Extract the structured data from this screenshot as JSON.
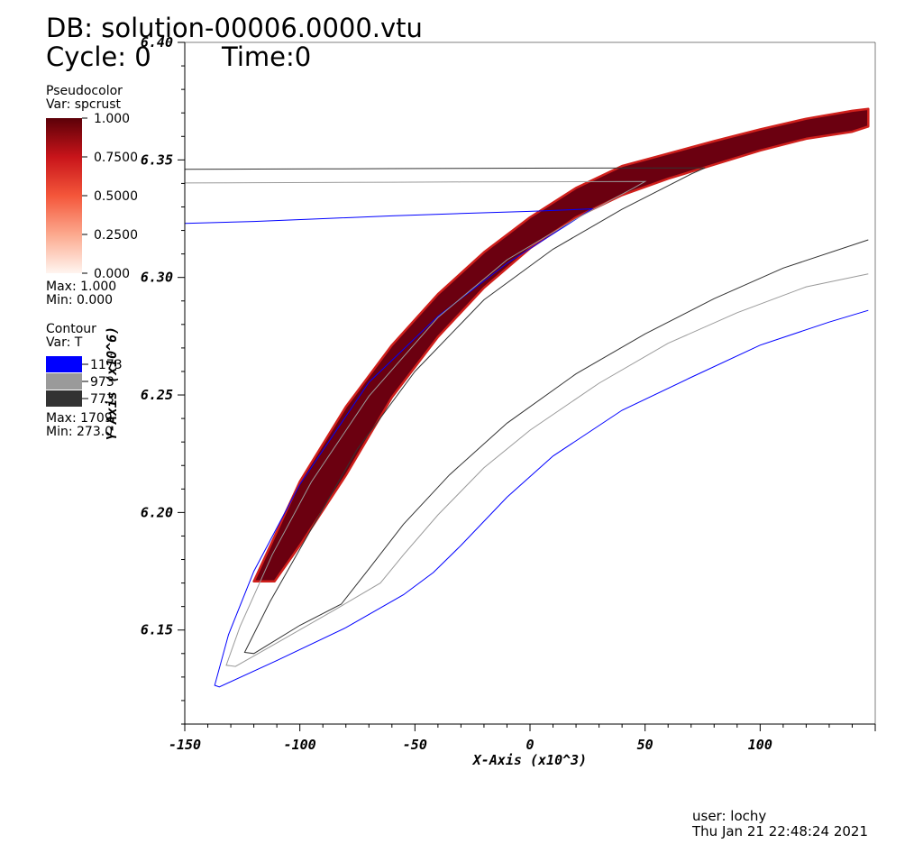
{
  "header": {
    "db": "DB: solution-00006.0000.vtu",
    "cycle": "Cycle: 0",
    "time": "Time:0"
  },
  "legend_pseudocolor": {
    "plot_type": "Pseudocolor",
    "var": "Var: spcrust",
    "ticks": [
      "1.000",
      "0.7500",
      "0.5000",
      "0.2500",
      "0.000"
    ],
    "max": "Max:  1.000",
    "min": "Min:  0.000",
    "colors": {
      "top": "#5c0008",
      "mid_high": "#c8141a",
      "mid": "#f4563a",
      "mid_low": "#fca98e",
      "bottom": "#fff5f0"
    }
  },
  "legend_contour": {
    "plot_type": "Contour",
    "var": "Var: T",
    "levels": [
      {
        "label": "1173",
        "color": "#0000ff"
      },
      {
        "label": "973",
        "color": "#9a9a9a"
      },
      {
        "label": "773",
        "color": "#333333"
      }
    ],
    "max": "Max:  1709",
    "min": "Min:  273.0"
  },
  "chart_data": {
    "type": "line",
    "xlabel": "X-Axis (x10^3)",
    "ylabel": "Y-Axis (x10^6)",
    "xlim": [
      -150,
      150
    ],
    "ylim": [
      6.11,
      6.4
    ],
    "xticks": [
      -150,
      -100,
      -50,
      0,
      50,
      100
    ],
    "xtick_labels": [
      "-150",
      "-100",
      "-50",
      "0",
      "50",
      "100"
    ],
    "yticks": [
      6.15,
      6.2,
      6.25,
      6.3,
      6.35,
      6.4
    ],
    "ytick_labels": [
      "6.15",
      "6.20",
      "6.25",
      "6.30",
      "6.35",
      "6.40"
    ],
    "pseudocolor_band": {
      "var": "spcrust",
      "value": 1.0,
      "color": "#6b0010",
      "edge_color": "#d0201c",
      "upper": [
        [
          -120,
          6.1707
        ],
        [
          -100,
          6.2132
        ],
        [
          -80,
          6.245
        ],
        [
          -60,
          6.2712
        ],
        [
          -40,
          6.2929
        ],
        [
          -20,
          6.3107
        ],
        [
          0,
          6.3256
        ],
        [
          20,
          6.3381
        ],
        [
          40,
          6.3474
        ],
        [
          60,
          6.3527
        ],
        [
          80,
          6.358
        ],
        [
          100,
          6.363
        ],
        [
          120,
          6.3675
        ],
        [
          140,
          6.3709
        ],
        [
          147,
          6.3717
        ]
      ],
      "lower": [
        [
          147,
          6.3642
        ],
        [
          140,
          6.362
        ],
        [
          120,
          6.359
        ],
        [
          100,
          6.354
        ],
        [
          80,
          6.348
        ],
        [
          60,
          6.342
        ],
        [
          40,
          6.335
        ],
        [
          20,
          6.3256
        ],
        [
          0,
          6.3124
        ],
        [
          -20,
          6.2956
        ],
        [
          -40,
          6.2747
        ],
        [
          -60,
          6.249
        ],
        [
          -80,
          6.2158
        ],
        [
          -100,
          6.186
        ],
        [
          -111,
          6.1707
        ]
      ]
    },
    "contours": [
      {
        "name": "1173",
        "color": "#0000ff",
        "segments": [
          [
            [
              -150,
              6.323
            ],
            [
              -120,
              6.3238
            ],
            [
              -90,
              6.325
            ],
            [
              -60,
              6.3262
            ],
            [
              -30,
              6.3272
            ],
            [
              0,
              6.3281
            ],
            [
              27,
              6.3292
            ],
            [
              14,
              6.321
            ],
            [
              -10,
              6.306
            ],
            [
              -40,
              6.2835
            ],
            [
              -70,
              6.2554
            ],
            [
              -100,
              6.212
            ],
            [
              -120,
              6.175
            ],
            [
              -131,
              6.148
            ],
            [
              -137,
              6.1265
            ],
            [
              -135,
              6.1258
            ],
            [
              -110,
              6.137
            ],
            [
              -80,
              6.151
            ],
            [
              -55,
              6.165
            ],
            [
              -42,
              6.1745
            ],
            [
              -30,
              6.186
            ],
            [
              -10,
              6.2065
            ],
            [
              10,
              6.224
            ],
            [
              40,
              6.2435
            ],
            [
              70,
              6.2575
            ],
            [
              100,
              6.2712
            ],
            [
              130,
              6.281
            ],
            [
              147,
              6.286
            ]
          ]
        ]
      },
      {
        "name": "973",
        "color": "#9a9a9a",
        "segments": [
          [
            [
              -150,
              6.3402
            ],
            [
              -120,
              6.3403
            ],
            [
              -90,
              6.3404
            ],
            [
              -60,
              6.3405
            ],
            [
              -30,
              6.3406
            ],
            [
              0,
              6.3407
            ],
            [
              50,
              6.3408
            ],
            [
              45,
              6.338
            ],
            [
              20,
              6.325
            ],
            [
              -10,
              6.3075
            ],
            [
              -40,
              6.283
            ],
            [
              -70,
              6.2495
            ],
            [
              -95,
              6.213
            ],
            [
              -112,
              6.182
            ],
            [
              -126,
              6.1515
            ],
            [
              -132,
              6.135
            ],
            [
              -128,
              6.1345
            ],
            [
              -110,
              6.1445
            ],
            [
              -85,
              6.1585
            ],
            [
              -65,
              6.17
            ],
            [
              -55,
              6.182
            ],
            [
              -40,
              6.199
            ],
            [
              -20,
              6.219
            ],
            [
              0,
              6.235
            ],
            [
              30,
              6.255
            ],
            [
              60,
              6.272
            ],
            [
              90,
              6.285
            ],
            [
              120,
              6.296
            ],
            [
              147,
              6.3015
            ]
          ]
        ]
      },
      {
        "name": "773",
        "color": "#333333",
        "segments": [
          [
            [
              -150,
              6.346
            ],
            [
              -120,
              6.3461
            ],
            [
              -90,
              6.3462
            ],
            [
              -60,
              6.3463
            ],
            [
              -30,
              6.3464
            ],
            [
              0,
              6.3465
            ],
            [
              76,
              6.3466
            ],
            [
              70,
              6.344
            ],
            [
              40,
              6.329
            ],
            [
              10,
              6.312
            ],
            [
              -20,
              6.2905
            ],
            [
              -50,
              6.26
            ],
            [
              -75,
              6.227
            ],
            [
              -95,
              6.193
            ],
            [
              -113,
              6.162
            ],
            [
              -124,
              6.1405
            ],
            [
              -120,
              6.14
            ],
            [
              -100,
              6.152
            ],
            [
              -82,
              6.161
            ],
            [
              -70,
              6.176
            ],
            [
              -55,
              6.195
            ],
            [
              -35,
              6.216
            ],
            [
              -10,
              6.238
            ],
            [
              20,
              6.259
            ],
            [
              50,
              6.276
            ],
            [
              80,
              6.291
            ],
            [
              110,
              6.304
            ],
            [
              147,
              6.316
            ]
          ]
        ]
      }
    ]
  },
  "footer": {
    "user": "user: lochy",
    "date": "Thu Jan 21 22:48:24 2021"
  }
}
